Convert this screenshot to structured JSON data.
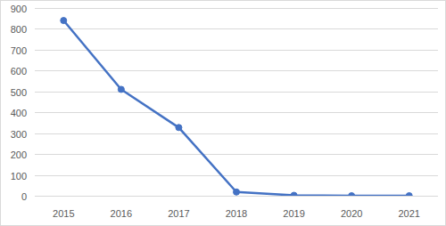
{
  "chart_data": {
    "type": "line",
    "categories": [
      "2015",
      "2016",
      "2017",
      "2018",
      "2019",
      "2020",
      "2021"
    ],
    "values": [
      840,
      510,
      327,
      18,
      2,
      0,
      0
    ],
    "color": "#4472c4",
    "marker": "circle",
    "ylim": [
      0,
      900
    ],
    "yticks": [
      0,
      100,
      200,
      300,
      400,
      500,
      600,
      700,
      800,
      900
    ],
    "grid": true
  }
}
